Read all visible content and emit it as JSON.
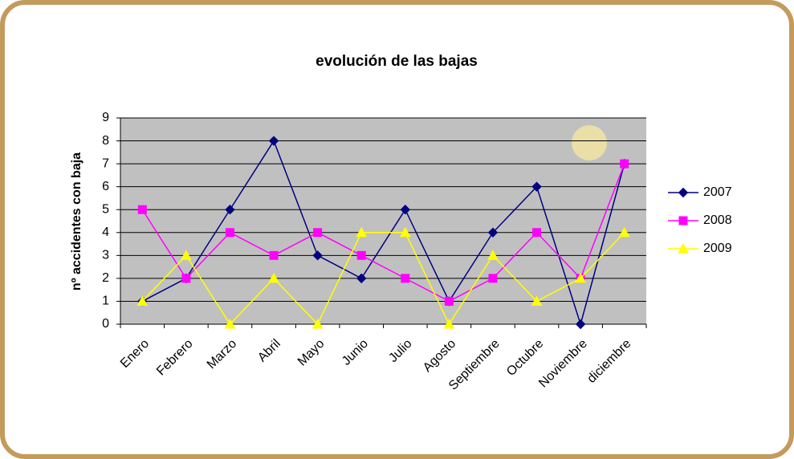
{
  "chart_data": {
    "type": "line",
    "title": "evolución de las bajas",
    "y_label": "nº accidentes con baja",
    "categories": [
      "Enero",
      "Febrero",
      "Marzo",
      "Abril",
      "Mayo",
      "Junio",
      "Julio",
      "Agosto",
      "Septiembre",
      "Octubre",
      "Noviembre",
      "diciembre"
    ],
    "series": [
      {
        "name": "2007",
        "color": "#000080",
        "marker": "diamond",
        "values": [
          1,
          2,
          5,
          8,
          3,
          2,
          5,
          1,
          4,
          6,
          0,
          7
        ]
      },
      {
        "name": "2008",
        "color": "#ff00ff",
        "marker": "square",
        "values": [
          5,
          2,
          4,
          3,
          4,
          3,
          2,
          1,
          2,
          4,
          2,
          7
        ]
      },
      {
        "name": "2009",
        "color": "#ffff00",
        "marker": "triangle",
        "values": [
          1,
          3,
          0,
          2,
          0,
          4,
          4,
          0,
          3,
          1,
          2,
          4
        ]
      }
    ],
    "ylim": [
      0,
      9
    ],
    "yticks": [
      0,
      1,
      2,
      3,
      4,
      5,
      6,
      7,
      8,
      9
    ],
    "grid": true,
    "legend": "right"
  }
}
